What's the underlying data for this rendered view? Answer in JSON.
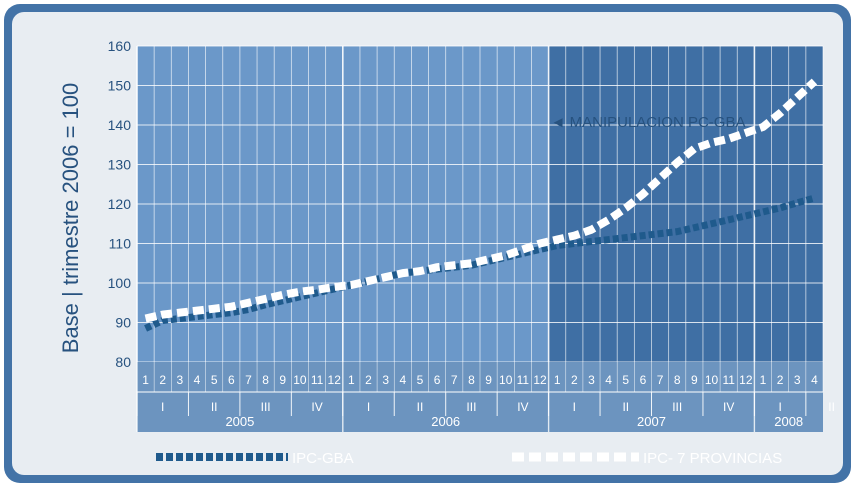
{
  "chart_data": {
    "type": "line",
    "ylabel": "Base | trimestre 2006 = 100",
    "ylim": [
      80,
      160
    ],
    "yticks": [
      "80",
      "90",
      "100",
      "110",
      "120",
      "130",
      "140",
      "150",
      "160"
    ],
    "grid": true,
    "legend_position": "bottom",
    "month_labels": [
      "1",
      "2",
      "3",
      "4",
      "5",
      "6",
      "7",
      "8",
      "9",
      "10",
      "11",
      "12",
      "1",
      "2",
      "3",
      "4",
      "5",
      "6",
      "7",
      "8",
      "9",
      "10",
      "11",
      "12",
      "1",
      "2",
      "3",
      "4",
      "5",
      "6",
      "7",
      "8",
      "9",
      "10",
      "11",
      "12",
      "1",
      "2",
      "3",
      "4"
    ],
    "quarter_labels": [
      "I",
      "II",
      "III",
      "IV",
      "I",
      "II",
      "III",
      "IV",
      "I",
      "II",
      "III",
      "IV",
      "I",
      "II"
    ],
    "years": [
      "2005",
      "2006",
      "2007",
      "2008"
    ],
    "annotation": "◄ MANIPULACION PC-GBA",
    "annotation_x": "2007 month 1",
    "series": [
      {
        "name": "IPC-GBA",
        "color": "#1f5a8c",
        "style": "dashed",
        "values": [
          88.5,
          90.5,
          91.0,
          91.5,
          92.0,
          92.5,
          93.3,
          94.5,
          95.5,
          96.5,
          97.5,
          98.5,
          99.5,
          100.5,
          101.5,
          102.5,
          103.0,
          103.5,
          104.0,
          104.5,
          105.5,
          106.5,
          107.5,
          108.5,
          109.5,
          110.0,
          110.5,
          111.0,
          111.5,
          112.0,
          112.5,
          113.0,
          114.0,
          115.0,
          116.0,
          117.0,
          118.0,
          119.0,
          120.3,
          121.5
        ]
      },
      {
        "name": "IPC- 7 PROVINCIAS",
        "color": "#ffffff",
        "style": "dashed",
        "values": [
          91.0,
          92.0,
          92.5,
          93.0,
          93.5,
          94.0,
          95.0,
          96.0,
          97.0,
          97.8,
          98.3,
          99.0,
          99.5,
          100.5,
          101.5,
          102.5,
          103.0,
          104.0,
          104.5,
          105.0,
          106.0,
          107.0,
          108.5,
          110.0,
          111.0,
          112.0,
          113.5,
          116.0,
          119.0,
          122.5,
          126.5,
          130.5,
          134.0,
          135.5,
          136.5,
          138.0,
          139.5,
          143.0,
          147.0,
          151.0
        ]
      }
    ]
  },
  "colors": {
    "background": "#4373a7",
    "panel_border": "#2a5d93",
    "plot_light": "#6b98c9",
    "plot_dark": "#3f6fa4",
    "axis_text": "#27527f",
    "bottom_band": "#6c94bf"
  }
}
